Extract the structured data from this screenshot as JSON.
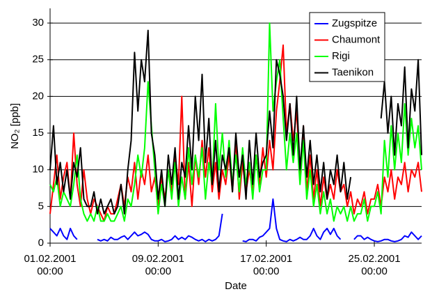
{
  "chart_data": {
    "type": "line",
    "ylabel": "NO₂ [ppb]",
    "xlabel": "Date",
    "ylim": [
      0,
      32
    ],
    "yticks": [
      0,
      5,
      10,
      15,
      20,
      25,
      30
    ],
    "grid": true,
    "xlim": [
      "2001-02-01T00:00",
      "2001-02-28T12:00"
    ],
    "xticks": [
      {
        "value": "2001-02-01T00:00",
        "label": "01.02.2001\n00:00"
      },
      {
        "value": "2001-02-09T00:00",
        "label": "09.02.2001\n00:00"
      },
      {
        "value": "2001-02-17T00:00",
        "label": "17.02.2001\n00:00"
      },
      {
        "value": "2001-02-25T00:00",
        "label": "25.02.2001\n00:00"
      }
    ],
    "legend": "upper right",
    "x": [
      "2001-02-01T00:00",
      "2001-02-01T06:00",
      "2001-02-01T12:00",
      "2001-02-01T18:00",
      "2001-02-02T00:00",
      "2001-02-02T06:00",
      "2001-02-02T12:00",
      "2001-02-02T18:00",
      "2001-02-03T00:00",
      "2001-02-03T06:00",
      "2001-02-03T12:00",
      "2001-02-03T18:00",
      "2001-02-04T00:00",
      "2001-02-04T06:00",
      "2001-02-04T12:00",
      "2001-02-04T18:00",
      "2001-02-05T00:00",
      "2001-02-05T06:00",
      "2001-02-05T12:00",
      "2001-02-05T18:00",
      "2001-02-06T00:00",
      "2001-02-06T06:00",
      "2001-02-06T12:00",
      "2001-02-06T18:00",
      "2001-02-07T00:00",
      "2001-02-07T06:00",
      "2001-02-07T12:00",
      "2001-02-07T18:00",
      "2001-02-08T00:00",
      "2001-02-08T06:00",
      "2001-02-08T12:00",
      "2001-02-08T18:00",
      "2001-02-09T00:00",
      "2001-02-09T06:00",
      "2001-02-09T12:00",
      "2001-02-09T18:00",
      "2001-02-10T00:00",
      "2001-02-10T06:00",
      "2001-02-10T12:00",
      "2001-02-10T18:00",
      "2001-02-11T00:00",
      "2001-02-11T06:00",
      "2001-02-11T12:00",
      "2001-02-11T18:00",
      "2001-02-12T00:00",
      "2001-02-12T06:00",
      "2001-02-12T12:00",
      "2001-02-12T18:00",
      "2001-02-13T00:00",
      "2001-02-13T06:00",
      "2001-02-13T12:00",
      "2001-02-13T18:00",
      "2001-02-14T00:00",
      "2001-02-14T06:00",
      "2001-02-14T12:00",
      "2001-02-14T18:00",
      "2001-02-15T00:00",
      "2001-02-15T06:00",
      "2001-02-15T12:00",
      "2001-02-15T18:00",
      "2001-02-16T00:00",
      "2001-02-16T06:00",
      "2001-02-16T12:00",
      "2001-02-16T18:00",
      "2001-02-17T00:00",
      "2001-02-17T06:00",
      "2001-02-17T12:00",
      "2001-02-17T18:00",
      "2001-02-18T00:00",
      "2001-02-18T06:00",
      "2001-02-18T12:00",
      "2001-02-18T18:00",
      "2001-02-19T00:00",
      "2001-02-19T06:00",
      "2001-02-19T12:00",
      "2001-02-19T18:00",
      "2001-02-20T00:00",
      "2001-02-20T06:00",
      "2001-02-20T12:00",
      "2001-02-20T18:00",
      "2001-02-21T00:00",
      "2001-02-21T06:00",
      "2001-02-21T12:00",
      "2001-02-21T18:00",
      "2001-02-22T00:00",
      "2001-02-22T06:00",
      "2001-02-22T12:00",
      "2001-02-22T18:00",
      "2001-02-23T00:00",
      "2001-02-23T06:00",
      "2001-02-23T12:00",
      "2001-02-23T18:00",
      "2001-02-24T00:00",
      "2001-02-24T06:00",
      "2001-02-24T12:00",
      "2001-02-24T18:00",
      "2001-02-25T00:00",
      "2001-02-25T06:00",
      "2001-02-25T12:00",
      "2001-02-25T18:00",
      "2001-02-26T00:00",
      "2001-02-26T06:00",
      "2001-02-26T12:00",
      "2001-02-26T18:00",
      "2001-02-27T00:00",
      "2001-02-27T06:00",
      "2001-02-27T12:00",
      "2001-02-27T18:00",
      "2001-02-28T00:00",
      "2001-02-28T06:00",
      "2001-02-28T12:00"
    ],
    "series": [
      {
        "name": "Zugspitze",
        "color": "#0000ff",
        "values": [
          2,
          1.5,
          1,
          2,
          1,
          0.5,
          2,
          1,
          0.5,
          null,
          null,
          null,
          null,
          null,
          0.5,
          0.3,
          0.5,
          0.3,
          0.8,
          0.5,
          0.5,
          0.8,
          1,
          0.5,
          1,
          1.5,
          1,
          1.2,
          1.5,
          1.2,
          0.5,
          0.3,
          0.3,
          0.5,
          0.2,
          0.3,
          0.5,
          1,
          0.5,
          0.8,
          0.5,
          1,
          0.8,
          0.5,
          0.3,
          0.5,
          0.2,
          0.5,
          0.3,
          0.5,
          1,
          4,
          null,
          null,
          null,
          null,
          null,
          0.3,
          0.2,
          0.5,
          0.5,
          0.3,
          0.8,
          1,
          1.5,
          2,
          6,
          2,
          0.5,
          0.3,
          0.2,
          0.5,
          0.3,
          0.5,
          0.8,
          0.5,
          0.5,
          1,
          2,
          1,
          0.5,
          1.5,
          2,
          1.2,
          2,
          1,
          0.5,
          null,
          null,
          null,
          0.5,
          1,
          1,
          0.5,
          0.8,
          0.5,
          0.3,
          0.2,
          0.3,
          0.5,
          0.5,
          0.3,
          0.2,
          0.3,
          0.5,
          1,
          0.8,
          1.5,
          1,
          0.5,
          1
        ]
      },
      {
        "name": "Chaumont",
        "color": "#ff0000",
        "values": [
          4,
          8,
          12,
          6,
          9,
          11,
          6,
          15,
          8,
          5,
          10,
          6,
          4,
          6,
          5,
          4,
          3,
          5,
          4,
          4,
          6,
          8,
          5,
          9,
          7,
          11,
          6,
          10,
          8,
          12,
          7,
          9,
          5,
          9,
          6,
          10,
          7,
          12,
          8,
          20,
          6,
          11,
          5,
          12,
          8,
          14,
          9,
          13,
          7,
          11,
          6,
          10,
          8,
          12,
          7,
          14,
          6,
          11,
          7,
          10,
          7,
          12,
          8,
          13,
          9,
          14,
          10,
          18,
          22,
          27,
          15,
          19,
          14,
          18,
          9,
          16,
          7,
          12,
          6,
          10,
          5,
          9,
          6,
          8,
          6,
          10,
          7,
          8,
          5,
          7,
          4,
          6,
          5,
          7,
          4,
          6,
          6,
          8,
          5,
          9,
          7,
          10,
          6,
          9,
          8,
          11,
          7,
          10,
          9,
          11,
          7
        ]
      },
      {
        "name": "Rigi",
        "color": "#00ff00",
        "values": [
          8,
          7,
          9,
          5,
          7,
          6,
          5,
          8,
          12,
          6,
          4,
          3,
          4,
          3,
          5,
          3,
          3,
          4,
          3,
          3,
          4,
          5,
          3,
          6,
          5,
          8,
          12,
          9,
          13,
          22,
          16,
          10,
          4,
          8,
          5,
          10,
          6,
          11,
          5,
          9,
          6,
          13,
          8,
          12,
          9,
          13,
          6,
          11,
          8,
          19,
          10,
          15,
          9,
          14,
          8,
          12,
          7,
          13,
          8,
          11,
          6,
          12,
          7,
          10,
          10,
          30,
          18,
          22,
          25,
          17,
          10,
          15,
          11,
          15,
          8,
          14,
          6,
          10,
          5,
          8,
          4,
          7,
          4,
          6,
          3,
          5,
          4,
          5,
          3,
          5,
          3,
          4,
          4,
          6,
          3,
          5,
          5,
          7,
          4,
          14,
          9,
          16,
          10,
          15,
          11,
          19,
          12,
          17,
          13,
          16,
          10
        ]
      },
      {
        "name": "Taenikon",
        "color": "#000000",
        "values": [
          10,
          16,
          8,
          11,
          7,
          10,
          6,
          11,
          9,
          13,
          6,
          5,
          5,
          7,
          4,
          6,
          4,
          5,
          6,
          4,
          5,
          8,
          4,
          10,
          14,
          26,
          18,
          25,
          22,
          29,
          15,
          12,
          6,
          10,
          5,
          12,
          8,
          13,
          6,
          11,
          9,
          16,
          10,
          20,
          14,
          23,
          11,
          17,
          8,
          14,
          7,
          12,
          10,
          13,
          7,
          15,
          9,
          12,
          6,
          14,
          8,
          15,
          9,
          11,
          12,
          18,
          13,
          25,
          23,
          20,
          14,
          19,
          12,
          20,
          10,
          16,
          9,
          14,
          8,
          12,
          7,
          11,
          6,
          10,
          8,
          12,
          7,
          11,
          6,
          9,
          null,
          null,
          null,
          null,
          null,
          null,
          null,
          null,
          17,
          22,
          15,
          20,
          12,
          19,
          16,
          24,
          13,
          21,
          18,
          25,
          12
        ]
      }
    ]
  }
}
